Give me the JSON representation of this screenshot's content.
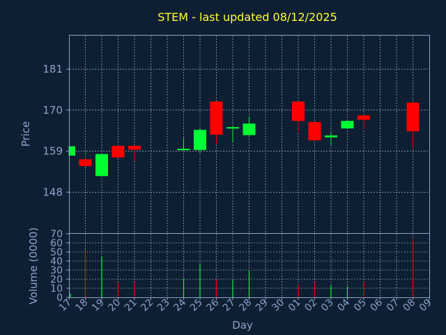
{
  "chart_data": [
    {
      "type": "candlestick",
      "title": "STEM - last updated 08/12/2025",
      "ylabel": "Price",
      "xlabel": "Day",
      "ylim": [
        137,
        190
      ],
      "yticks": [
        148,
        159,
        170,
        181
      ],
      "grid": true,
      "x_tick_labels": [
        "17",
        "18",
        "19",
        "20",
        "21",
        "22",
        "23",
        "24",
        "25",
        "26",
        "27",
        "28",
        "29",
        "30",
        "01",
        "02",
        "03",
        "04",
        "05",
        "06",
        "07",
        "08",
        "09"
      ],
      "colors": {
        "up": "#00ff33",
        "down": "#ff0000",
        "background": "#0f1f33",
        "grid": "#c8d2dc",
        "axis": "#8aa4c8",
        "title": "#ffff33"
      },
      "candles": [
        {
          "x": "17",
          "open": 157.8,
          "close": 160.3,
          "high": 160.3,
          "low": 157.8
        },
        {
          "x": "18",
          "open": 156.8,
          "close": 155.0,
          "high": 158.0,
          "low": 154.8
        },
        {
          "x": "19",
          "open": 152.3,
          "close": 158.2,
          "high": 158.3,
          "low": 152.3
        },
        {
          "x": "20",
          "open": 160.4,
          "close": 157.3,
          "high": 160.6,
          "low": 157.0
        },
        {
          "x": "21",
          "open": 160.4,
          "close": 159.4,
          "high": 160.6,
          "low": 156.2
        },
        {
          "x": "24",
          "open": 159.3,
          "close": 159.6,
          "high": 162.5,
          "low": 159.2
        },
        {
          "x": "25",
          "open": 159.3,
          "close": 164.7,
          "high": 165.0,
          "low": 158.5
        },
        {
          "x": "26",
          "open": 172.3,
          "close": 163.4,
          "high": 172.5,
          "low": 161.0
        },
        {
          "x": "27",
          "open": 165.1,
          "close": 165.4,
          "high": 165.6,
          "low": 161.5
        },
        {
          "x": "28",
          "open": 163.3,
          "close": 166.4,
          "high": 168.3,
          "low": 163.1
        },
        {
          "x": "01",
          "open": 172.3,
          "close": 167.1,
          "high": 172.5,
          "low": 163.8
        },
        {
          "x": "02",
          "open": 166.8,
          "close": 161.9,
          "high": 167.0,
          "low": 161.7
        },
        {
          "x": "03",
          "open": 162.7,
          "close": 163.2,
          "high": 164.0,
          "low": 160.6
        },
        {
          "x": "04",
          "open": 165.1,
          "close": 167.1,
          "high": 167.3,
          "low": 164.9
        },
        {
          "x": "05",
          "open": 168.6,
          "close": 167.4,
          "high": 168.6,
          "low": 165.0
        },
        {
          "x": "08",
          "open": 172.0,
          "close": 164.3,
          "high": 172.2,
          "low": 159.6
        }
      ]
    },
    {
      "type": "bar",
      "ylabel": "Volume (0000)",
      "xlabel": "Day",
      "ylim": [
        0,
        70
      ],
      "yticks": [
        0,
        10,
        20,
        30,
        40,
        50,
        60,
        70
      ],
      "grid": true,
      "categories": [
        "17",
        "18",
        "19",
        "20",
        "21",
        "24",
        "25",
        "26",
        "27",
        "28",
        "01",
        "02",
        "03",
        "04",
        "05",
        "08"
      ],
      "values": [
        4,
        53,
        45,
        16,
        16,
        21,
        37,
        20,
        19,
        29,
        14,
        16,
        13,
        12,
        17,
        64
      ],
      "direction": [
        "up",
        "down",
        "up",
        "down",
        "down",
        "up",
        "up",
        "down",
        "up",
        "up",
        "down",
        "down",
        "up",
        "up",
        "down",
        "down"
      ]
    }
  ]
}
